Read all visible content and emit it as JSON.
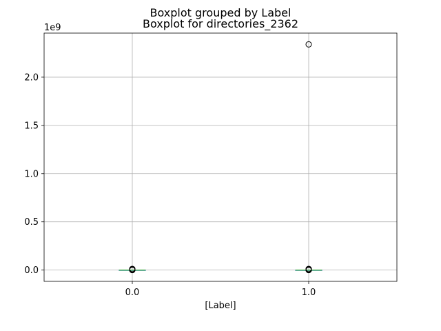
{
  "chart_data": {
    "type": "boxplot",
    "suptitle": "Boxplot grouped by Label",
    "title": "Boxplot for directories_2362",
    "xlabel": "[Label]",
    "ylabel": "",
    "y_offset_label": "1e9",
    "categories": [
      "0.0",
      "1.0"
    ],
    "x_positions": [
      1,
      2
    ],
    "xlim": [
      0.5,
      2.5
    ],
    "ylim": [
      -0.117,
      2.457
    ],
    "yticks": [
      0.0,
      0.5,
      1.0,
      1.5,
      2.0
    ],
    "ytick_labels": [
      "0.0",
      "0.5",
      "1.0",
      "1.5",
      "2.0"
    ],
    "y_scale_factor": 1000000000,
    "grid": true,
    "boxes": [
      {
        "category": "0.0",
        "q1": 0,
        "median": 0,
        "q3": 0,
        "whisker_low": 0,
        "whisker_high": 0,
        "fliers": [
          0.0,
          0.002,
          0.004,
          0.006,
          0.008,
          0.01,
          0.012
        ]
      },
      {
        "category": "1.0",
        "q1": 0,
        "median": 0,
        "q3": 0,
        "whisker_low": 0,
        "whisker_high": 0,
        "fliers": [
          0.0,
          0.002,
          0.004,
          0.006,
          0.008,
          0.01,
          0.012,
          2.34
        ]
      }
    ],
    "colors": {
      "box": "#1f77b4",
      "median": "#2ca02c",
      "flier": "#000000",
      "grid": "#b0b0b0"
    }
  }
}
